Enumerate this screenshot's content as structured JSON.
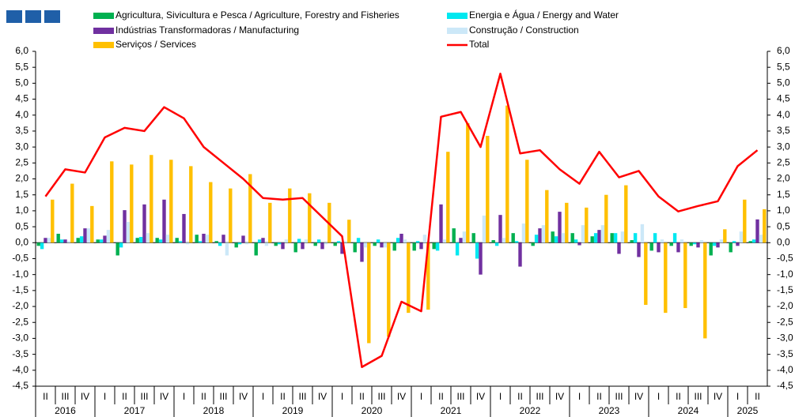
{
  "chart_data": {
    "type": "bar_line",
    "categories": [
      "II",
      "III",
      "IV",
      "I",
      "II",
      "III",
      "IV",
      "I",
      "II",
      "III",
      "IV",
      "I",
      "II",
      "III",
      "IV",
      "I",
      "II",
      "III",
      "IV",
      "I",
      "II",
      "III",
      "IV",
      "I",
      "II",
      "III",
      "IV",
      "I",
      "II",
      "III",
      "IV",
      "I",
      "II",
      "III",
      "IV",
      "I",
      "II"
    ],
    "years": [
      "2016",
      "2017",
      "2018",
      "2019",
      "2020",
      "2021",
      "2022",
      "2023",
      "2024",
      "2025"
    ],
    "series": [
      {
        "name": "Agricultura, Sivicultura e Pesca / Agriculture, Forestry and Fisheries",
        "color": "#00b050",
        "type": "bar",
        "values": [
          -0.1,
          0.28,
          0.15,
          0.1,
          -0.4,
          0.15,
          0.15,
          0.15,
          0.25,
          0.05,
          -0.15,
          -0.4,
          -0.1,
          -0.3,
          -0.1,
          -0.1,
          -0.3,
          -0.1,
          -0.25,
          -0.25,
          -0.2,
          0.45,
          0.3,
          0.08,
          0.3,
          -0.1,
          0.35,
          0.3,
          0.2,
          0.3,
          0.08,
          -0.25,
          -0.1,
          -0.1,
          -0.4,
          -0.3,
          0.05
        ]
      },
      {
        "name": "Energia e Água / Energy and Water",
        "color": "#00e8f0",
        "type": "bar",
        "values": [
          -0.2,
          0.1,
          0.2,
          0.1,
          -0.15,
          0.18,
          0.1,
          0.05,
          0.05,
          -0.1,
          -0.05,
          0.1,
          -0.05,
          0.12,
          0.1,
          0.05,
          0.15,
          0.1,
          0.15,
          0.05,
          -0.25,
          -0.4,
          -0.5,
          -0.1,
          0.05,
          0.25,
          0.2,
          0.1,
          0.3,
          0.3,
          0.3,
          0.3,
          0.3,
          -0.05,
          -0.1,
          0.05,
          0.1
        ]
      },
      {
        "name": "Indústrias Transformadoras / Manufacturing",
        "color": "#7030a0",
        "type": "bar",
        "values": [
          0.15,
          0.1,
          0.45,
          0.22,
          1.02,
          1.2,
          1.35,
          0.9,
          0.28,
          0.25,
          0.22,
          0.15,
          -0.2,
          -0.2,
          -0.2,
          -0.35,
          -0.6,
          -0.15,
          0.28,
          -0.2,
          1.2,
          0.15,
          -1.0,
          0.87,
          -0.75,
          0.45,
          0.97,
          -0.08,
          0.4,
          -0.35,
          -0.45,
          -0.3,
          -0.3,
          -0.15,
          -0.15,
          -0.1,
          0.73
        ]
      },
      {
        "name": "Construção / Construction",
        "color": "#cce8f8",
        "type": "bar",
        "values": [
          0.15,
          0.05,
          0.45,
          0.4,
          0.65,
          0.3,
          0.25,
          -0.05,
          0.25,
          -0.4,
          -0.05,
          -0.1,
          0.1,
          0.1,
          -0.05,
          0.05,
          -0.15,
          -0.15,
          0.1,
          0.25,
          0.1,
          0.35,
          0.85,
          0.15,
          0.6,
          0.55,
          0.3,
          0.55,
          0.55,
          0.35,
          0.58,
          0.1,
          0.1,
          0.08,
          0.1,
          0.35,
          0.25
        ]
      },
      {
        "name": "Serviços / Services",
        "color": "#ffc000",
        "type": "bar",
        "values": [
          1.35,
          1.85,
          1.15,
          2.55,
          2.45,
          2.75,
          2.6,
          2.4,
          1.9,
          1.7,
          2.15,
          1.25,
          1.7,
          1.55,
          1.25,
          0.72,
          -3.15,
          -2.95,
          -2.2,
          -2.1,
          2.85,
          3.75,
          3.35,
          4.3,
          2.6,
          1.65,
          1.25,
          1.1,
          1.5,
          1.8,
          -1.95,
          -2.2,
          -2.05,
          -3.0,
          0.42,
          1.35,
          1.05
        ]
      },
      {
        "name": "Total",
        "color": "#ff0000",
        "type": "line",
        "values": [
          1.45,
          2.3,
          2.2,
          3.3,
          3.6,
          3.5,
          4.25,
          3.9,
          3.0,
          2.5,
          2.0,
          1.4,
          1.35,
          1.4,
          0.8,
          0.2,
          -3.9,
          -3.55,
          -1.85,
          -2.15,
          3.95,
          4.1,
          3.0,
          5.3,
          2.8,
          2.9,
          2.3,
          1.85,
          2.85,
          2.05,
          2.25,
          1.45,
          0.98,
          1.15,
          1.3,
          2.4,
          2.9
        ]
      }
    ],
    "ylim": [
      -4.5,
      6.0
    ],
    "yticks": [
      {
        "value": 6.0,
        "label": "6,0"
      },
      {
        "value": 5.5,
        "label": "5,5"
      },
      {
        "value": 5.0,
        "label": "5,0"
      },
      {
        "value": 4.5,
        "label": "4,5"
      },
      {
        "value": 4.0,
        "label": "4,0"
      },
      {
        "value": 3.5,
        "label": "3,5"
      },
      {
        "value": 3.0,
        "label": "3,0"
      },
      {
        "value": 2.5,
        "label": "2,5"
      },
      {
        "value": 2.0,
        "label": "2,0"
      },
      {
        "value": 1.5,
        "label": "1,5"
      },
      {
        "value": 1.0,
        "label": "1,0"
      },
      {
        "value": 0.5,
        "label": "0,5"
      },
      {
        "value": 0.0,
        "label": "0,0"
      },
      {
        "value": -0.5,
        "label": "-0,5"
      },
      {
        "value": -1.0,
        "label": "-1,0"
      },
      {
        "value": -1.5,
        "label": "-1,5"
      },
      {
        "value": -2.0,
        "label": "-2,0"
      },
      {
        "value": -2.5,
        "label": "-2,5"
      },
      {
        "value": -3.0,
        "label": "-3,0"
      },
      {
        "value": -3.5,
        "label": "-3,5"
      },
      {
        "value": -4.0,
        "label": "-4,0"
      },
      {
        "value": -4.5,
        "label": "-4,5"
      }
    ],
    "legend": "top"
  }
}
